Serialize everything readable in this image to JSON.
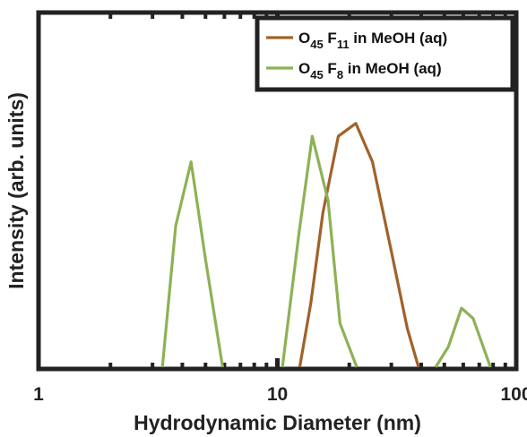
{
  "chart_data": {
    "type": "line",
    "title": "",
    "xlabel": "Hydrodynamic Diameter (nm)",
    "ylabel": "Intensity (arb. units)",
    "xscale": "log",
    "xlim": [
      1,
      100
    ],
    "ylim": [
      0,
      1
    ],
    "x_ticks": [
      1,
      10,
      100
    ],
    "x_tick_labels": [
      "1",
      "10",
      "100"
    ],
    "y_ticks_labeled": false,
    "grid": false,
    "legend_position": "top-right",
    "series": [
      {
        "name": "O45 F11 in MeOH (aq)",
        "legend": {
          "main": "O",
          "sub1": "45",
          "mid": " F",
          "sub2": "11",
          "tail": " in MeOH (aq)"
        },
        "color": "#A0622A",
        "points": [
          [
            12.4,
            0.0
          ],
          [
            13.8,
            0.25
          ],
          [
            15.5,
            0.6
          ],
          [
            18.0,
            0.9
          ],
          [
            21.3,
            0.95
          ],
          [
            25.0,
            0.8
          ],
          [
            30.0,
            0.45
          ],
          [
            35.0,
            0.15
          ],
          [
            39.0,
            0.0
          ]
        ]
      },
      {
        "name": "O45 F8 in MeOH (aq)",
        "legend": {
          "main": "O",
          "sub1": "45",
          "mid": " F",
          "sub2": "8",
          "tail": " in MeOH (aq)"
        },
        "color": "#8DB255",
        "points": [
          [
            3.3,
            0.0
          ],
          [
            3.75,
            0.55
          ],
          [
            4.35,
            0.8
          ],
          [
            5.0,
            0.42
          ],
          [
            5.9,
            0.0
          ],
          [
            null,
            null
          ],
          [
            10.5,
            0.0
          ],
          [
            12.3,
            0.52
          ],
          [
            14.0,
            0.9
          ],
          [
            16.3,
            0.65
          ],
          [
            18.3,
            0.17
          ],
          [
            21.5,
            0.0
          ],
          [
            null,
            null
          ],
          [
            46.0,
            0.0
          ],
          [
            52.0,
            0.08
          ],
          [
            59.0,
            0.23
          ],
          [
            66.0,
            0.19
          ],
          [
            78.0,
            0.0
          ]
        ]
      }
    ]
  }
}
